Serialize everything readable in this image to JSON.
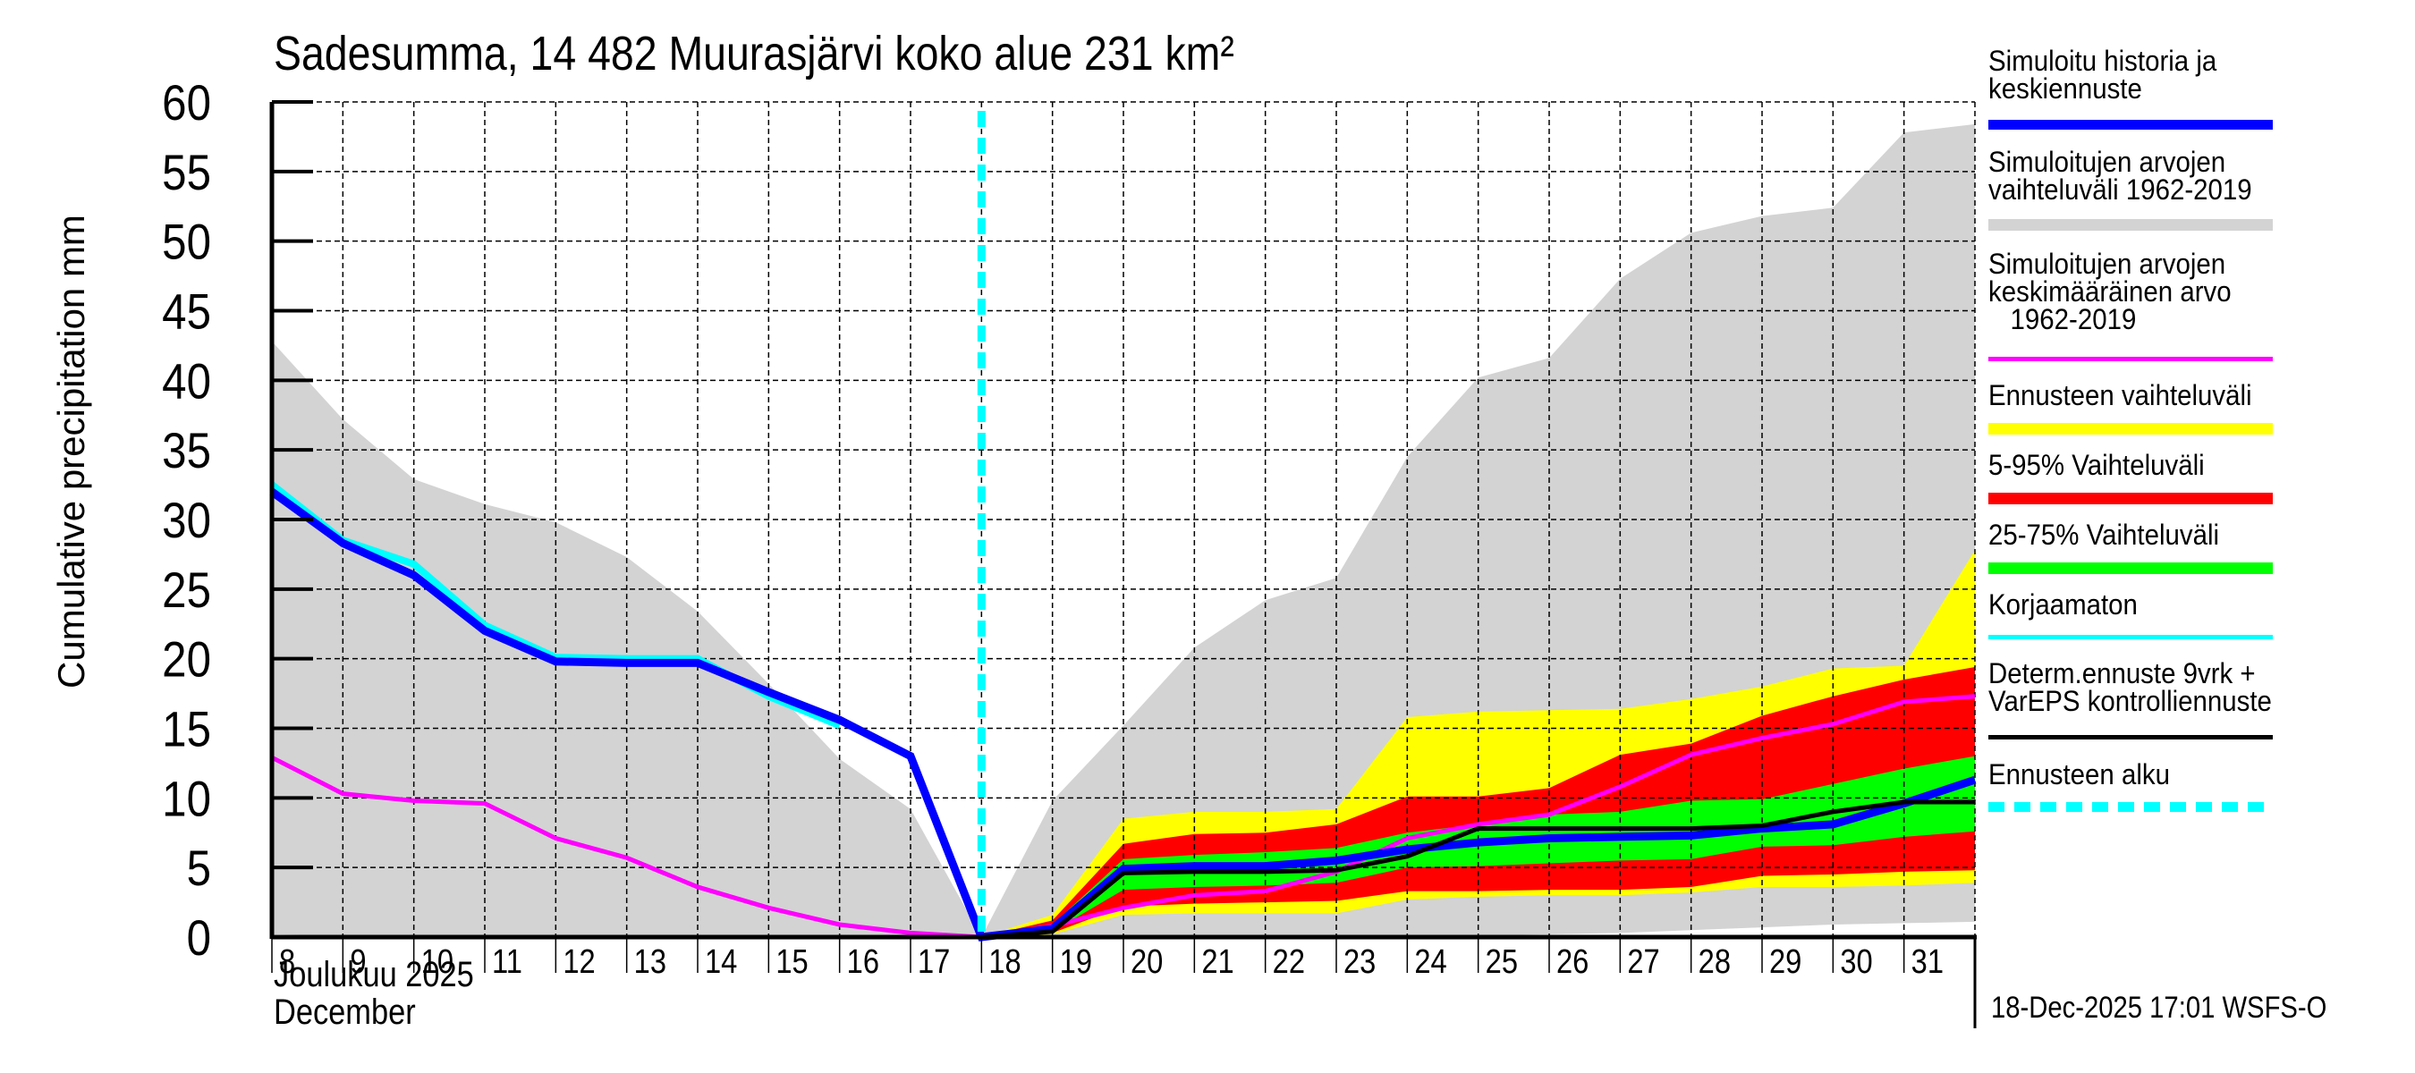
{
  "chart_data": {
    "type": "area",
    "title": "Sadesumma, 14 482 Muurasjärvi koko alue 231 km²",
    "ylabel": "Cumulative precipitation   mm",
    "xlabel_lines": [
      "Joulukuu  2025",
      "December"
    ],
    "ylim": [
      0,
      60
    ],
    "yticks": [
      0,
      5,
      10,
      15,
      20,
      25,
      30,
      35,
      40,
      45,
      50,
      55,
      60
    ],
    "x_days": [
      8,
      9,
      10,
      11,
      12,
      13,
      14,
      15,
      16,
      17,
      18,
      19,
      20,
      21,
      22,
      23,
      24,
      25,
      26,
      27,
      28,
      29,
      30,
      31,
      32
    ],
    "xtick_labels": [
      "8",
      "9",
      "10",
      "11",
      "12",
      "13",
      "14",
      "15",
      "16",
      "17",
      "18",
      "19",
      "20",
      "21",
      "22",
      "23",
      "24",
      "25",
      "26",
      "27",
      "28",
      "29",
      "30",
      "31"
    ],
    "xlim": [
      8,
      32
    ],
    "forecast_start_day": 18,
    "grid": true,
    "legend_position": "right",
    "series": [
      {
        "name": "Simuloitujen arvojen vaihteluväli 1962-2019",
        "kind": "band",
        "color": "#d3d3d3",
        "upper": [
          42.8,
          37.2,
          32.9,
          31.1,
          29.8,
          27.3,
          23.4,
          18.2,
          12.8,
          9.2,
          0,
          9.8,
          15.2,
          20.8,
          24.2,
          25.8,
          34.5,
          40.2,
          41.6,
          47.3,
          50.6,
          51.8,
          52.4,
          57.8,
          58.4
        ],
        "lower": [
          0.2,
          0.1,
          0.1,
          0.1,
          0,
          0,
          0,
          0,
          0,
          0,
          0,
          0,
          0,
          0,
          0,
          0,
          0,
          0.1,
          0.2,
          0.3,
          0.5,
          0.7,
          0.9,
          1.0,
          1.1
        ]
      },
      {
        "name": "Ennusteen vaihteluväli",
        "kind": "band",
        "color": "#ffff00",
        "start_day": 18,
        "upper": [
          0,
          1.6,
          8.5,
          9.0,
          9.0,
          9.2,
          15.8,
          16.2,
          16.3,
          16.4,
          17.1,
          18.0,
          19.3,
          19.5,
          27.8
        ],
        "lower": [
          0,
          0.2,
          1.6,
          1.7,
          1.7,
          1.7,
          2.7,
          2.9,
          3.0,
          3.0,
          3.2,
          3.6,
          3.6,
          3.7,
          3.9
        ]
      },
      {
        "name": "5-95% Vaihteluväli",
        "kind": "band",
        "color": "#ff0000",
        "start_day": 18,
        "upper": [
          0,
          1.2,
          6.7,
          7.4,
          7.5,
          8.1,
          10.1,
          10.1,
          10.7,
          13.1,
          13.9,
          15.9,
          17.3,
          18.5,
          19.4
        ],
        "lower": [
          0,
          0.3,
          2.2,
          2.4,
          2.5,
          2.6,
          3.3,
          3.3,
          3.4,
          3.4,
          3.6,
          4.4,
          4.5,
          4.7,
          4.8
        ]
      },
      {
        "name": "25-75% Vaihteluväli",
        "kind": "band",
        "color": "#00ff00",
        "start_day": 18,
        "upper": [
          0,
          0.9,
          5.6,
          5.9,
          6.1,
          6.4,
          7.5,
          8.1,
          8.8,
          9.0,
          9.8,
          9.9,
          11.0,
          12.1,
          13.0
        ],
        "lower": [
          0,
          0.4,
          3.4,
          3.6,
          3.7,
          3.9,
          5.0,
          5.1,
          5.3,
          5.5,
          5.6,
          6.5,
          6.6,
          7.2,
          7.6
        ]
      },
      {
        "name": "Simuloitujen arvojen keskimääräinen arvo 1962-2019",
        "kind": "line",
        "color": "#ff00ff",
        "values": [
          12.9,
          10.3,
          9.8,
          9.6,
          7.1,
          5.7,
          3.6,
          2.1,
          0.9,
          0.3,
          0,
          0.8,
          2.1,
          3.0,
          3.3,
          4.7,
          7.1,
          8.1,
          8.8,
          10.8,
          13.1,
          14.3,
          15.3,
          16.9,
          17.3
        ]
      },
      {
        "name": "Korjaamaton",
        "kind": "line",
        "color": "#00ffff",
        "end_day": 16,
        "values": [
          32.5,
          28.5,
          26.8,
          22.4,
          20.1,
          20.0,
          20.0,
          17.3,
          15.2
        ]
      },
      {
        "name": "Simuloitu historia ja keskiennuste",
        "kind": "line",
        "color": "#0000ff",
        "values": [
          32.0,
          28.3,
          26.0,
          22.0,
          19.8,
          19.7,
          19.7,
          17.6,
          15.6,
          13.0,
          0,
          0.6,
          4.9,
          5.1,
          5.1,
          5.5,
          6.3,
          6.8,
          7.1,
          7.2,
          7.3,
          7.8,
          8.1,
          9.6,
          11.3
        ]
      },
      {
        "name": "Determ.ennuste 9vrk + VarEPS kontrolliennuste",
        "kind": "line",
        "color": "#000000",
        "start_day": 18,
        "values": [
          0,
          0.4,
          4.6,
          4.7,
          4.7,
          4.8,
          5.8,
          7.8,
          7.8,
          7.8,
          7.8,
          8.0,
          9.0,
          9.7,
          9.7
        ]
      }
    ]
  },
  "legend": [
    {
      "label": "Simuloitu historia ja\nkeskiennuste",
      "color": "#0000ff"
    },
    {
      "label": "Simuloitujen arvojen\nvaihteluväli 1962-2019",
      "color": "#d3d3d3"
    },
    {
      "label": "Simuloitujen arvojen\nkeskimääräinen arvo\n   1962-2019",
      "color": "#ff00ff"
    },
    {
      "label": "Ennusteen vaihteluväli",
      "color": "#ffff00"
    },
    {
      "label": "5-95% Vaihteluväli",
      "color": "#ff0000"
    },
    {
      "label": "25-75% Vaihteluväli",
      "color": "#00ff00"
    },
    {
      "label": "Korjaamaton",
      "color": "#00ffff"
    },
    {
      "label": "Determ.ennuste 9vrk +\nVarEPS kontrolliennuste",
      "color": "#000000"
    },
    {
      "label": "Ennusteen alku",
      "color": "#00ffff",
      "dashed": true
    }
  ],
  "footer": {
    "timestamp": "18-Dec-2025 17:01 WSFS-O"
  }
}
